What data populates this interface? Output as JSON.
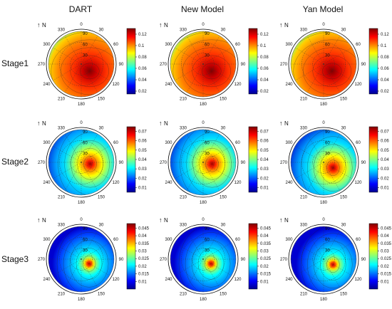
{
  "columns": [
    "DART",
    "New Model",
    "Yan Model"
  ],
  "rows": [
    "Stage1",
    "Stage2",
    "Stage3"
  ],
  "north_label": "N",
  "azimuth_labels": [
    "0",
    "30",
    "60",
    "90",
    "120",
    "150",
    "180",
    "210",
    "240",
    "270",
    "300",
    "330"
  ],
  "zenith_labels": [
    "30",
    "60",
    "90"
  ],
  "colormap": [
    "#00008f",
    "#0000ff",
    "#0080ff",
    "#00ffff",
    "#80ff80",
    "#ffff00",
    "#ff8000",
    "#ff0000",
    "#800000"
  ],
  "chart_data": [
    {
      "type": "heatmap",
      "row": "Stage1",
      "column": "DART",
      "colorbar_ticks": [
        "0.02",
        "0.04",
        "0.06",
        "0.08",
        "0.1",
        "0.12"
      ],
      "clim": [
        0.015,
        0.13
      ],
      "hotspot": {
        "azimuth": "130",
        "zenith": "30"
      }
    },
    {
      "type": "heatmap",
      "row": "Stage1",
      "column": "New Model",
      "colorbar_ticks": [
        "0.02",
        "0.04",
        "0.06",
        "0.08",
        "0.1",
        "0.12"
      ],
      "clim": [
        0.015,
        0.13
      ],
      "hotspot": {
        "azimuth": "130",
        "zenith": "30"
      }
    },
    {
      "type": "heatmap",
      "row": "Stage1",
      "column": "Yan Model",
      "colorbar_ticks": [
        "0.02",
        "0.04",
        "0.06",
        "0.08",
        "0.1",
        "0.12"
      ],
      "clim": [
        0.015,
        0.13
      ],
      "hotspot": {
        "azimuth": "130",
        "zenith": "30"
      }
    },
    {
      "type": "heatmap",
      "row": "Stage2",
      "column": "DART",
      "colorbar_ticks": [
        "0.01",
        "0.02",
        "0.03",
        "0.04",
        "0.05",
        "0.06",
        "0.07"
      ],
      "clim": [
        0.005,
        0.075
      ],
      "hotspot": {
        "azimuth": "100",
        "zenith": "25"
      }
    },
    {
      "type": "heatmap",
      "row": "Stage2",
      "column": "New Model",
      "colorbar_ticks": [
        "0.01",
        "0.02",
        "0.03",
        "0.04",
        "0.05",
        "0.06",
        "0.07"
      ],
      "clim": [
        0.005,
        0.075
      ],
      "hotspot": {
        "azimuth": "100",
        "zenith": "25"
      }
    },
    {
      "type": "heatmap",
      "row": "Stage2",
      "column": "Yan Model",
      "colorbar_ticks": [
        "0.01",
        "0.02",
        "0.03",
        "0.04",
        "0.05",
        "0.06",
        "0.07"
      ],
      "clim": [
        0.005,
        0.075
      ],
      "hotspot": {
        "azimuth": "120",
        "zenith": "30"
      }
    },
    {
      "type": "heatmap",
      "row": "Stage3",
      "column": "DART",
      "colorbar_ticks": [
        "0.01",
        "0.015",
        "0.02",
        "0.025",
        "0.03",
        "0.035",
        "0.04",
        "0.045"
      ],
      "clim": [
        0.005,
        0.048
      ],
      "hotspot": {
        "azimuth": "120",
        "zenith": "25"
      }
    },
    {
      "type": "heatmap",
      "row": "Stage3",
      "column": "New Model",
      "colorbar_ticks": [
        "0.01",
        "0.015",
        "0.02",
        "0.025",
        "0.03",
        "0.035",
        "0.04",
        "0.045"
      ],
      "clim": [
        0.005,
        0.048
      ],
      "hotspot": {
        "azimuth": "120",
        "zenith": "25"
      }
    },
    {
      "type": "heatmap",
      "row": "Stage3",
      "column": "Yan Model",
      "colorbar_ticks": [
        "0.01",
        "0.015",
        "0.02",
        "0.025",
        "0.03",
        "0.035",
        "0.04",
        "0.045"
      ],
      "clim": [
        0.005,
        0.048
      ],
      "hotspot": {
        "azimuth": "120",
        "zenith": "30"
      }
    }
  ]
}
